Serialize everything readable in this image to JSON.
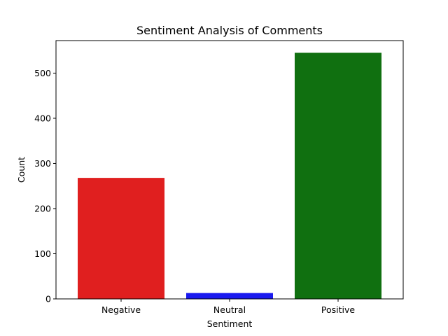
{
  "chart_data": {
    "type": "bar",
    "title": "Sentiment Analysis of Comments",
    "xlabel": "Sentiment",
    "ylabel": "Count",
    "categories": [
      "Negative",
      "Neutral",
      "Positive"
    ],
    "values": [
      268,
      13,
      545
    ],
    "colors": [
      "#e01f1f",
      "#1a1aef",
      "#107010"
    ],
    "ylim": [
      0,
      572
    ],
    "yticks": [
      0,
      100,
      200,
      300,
      400,
      500
    ],
    "grid": false,
    "legend": "none"
  }
}
